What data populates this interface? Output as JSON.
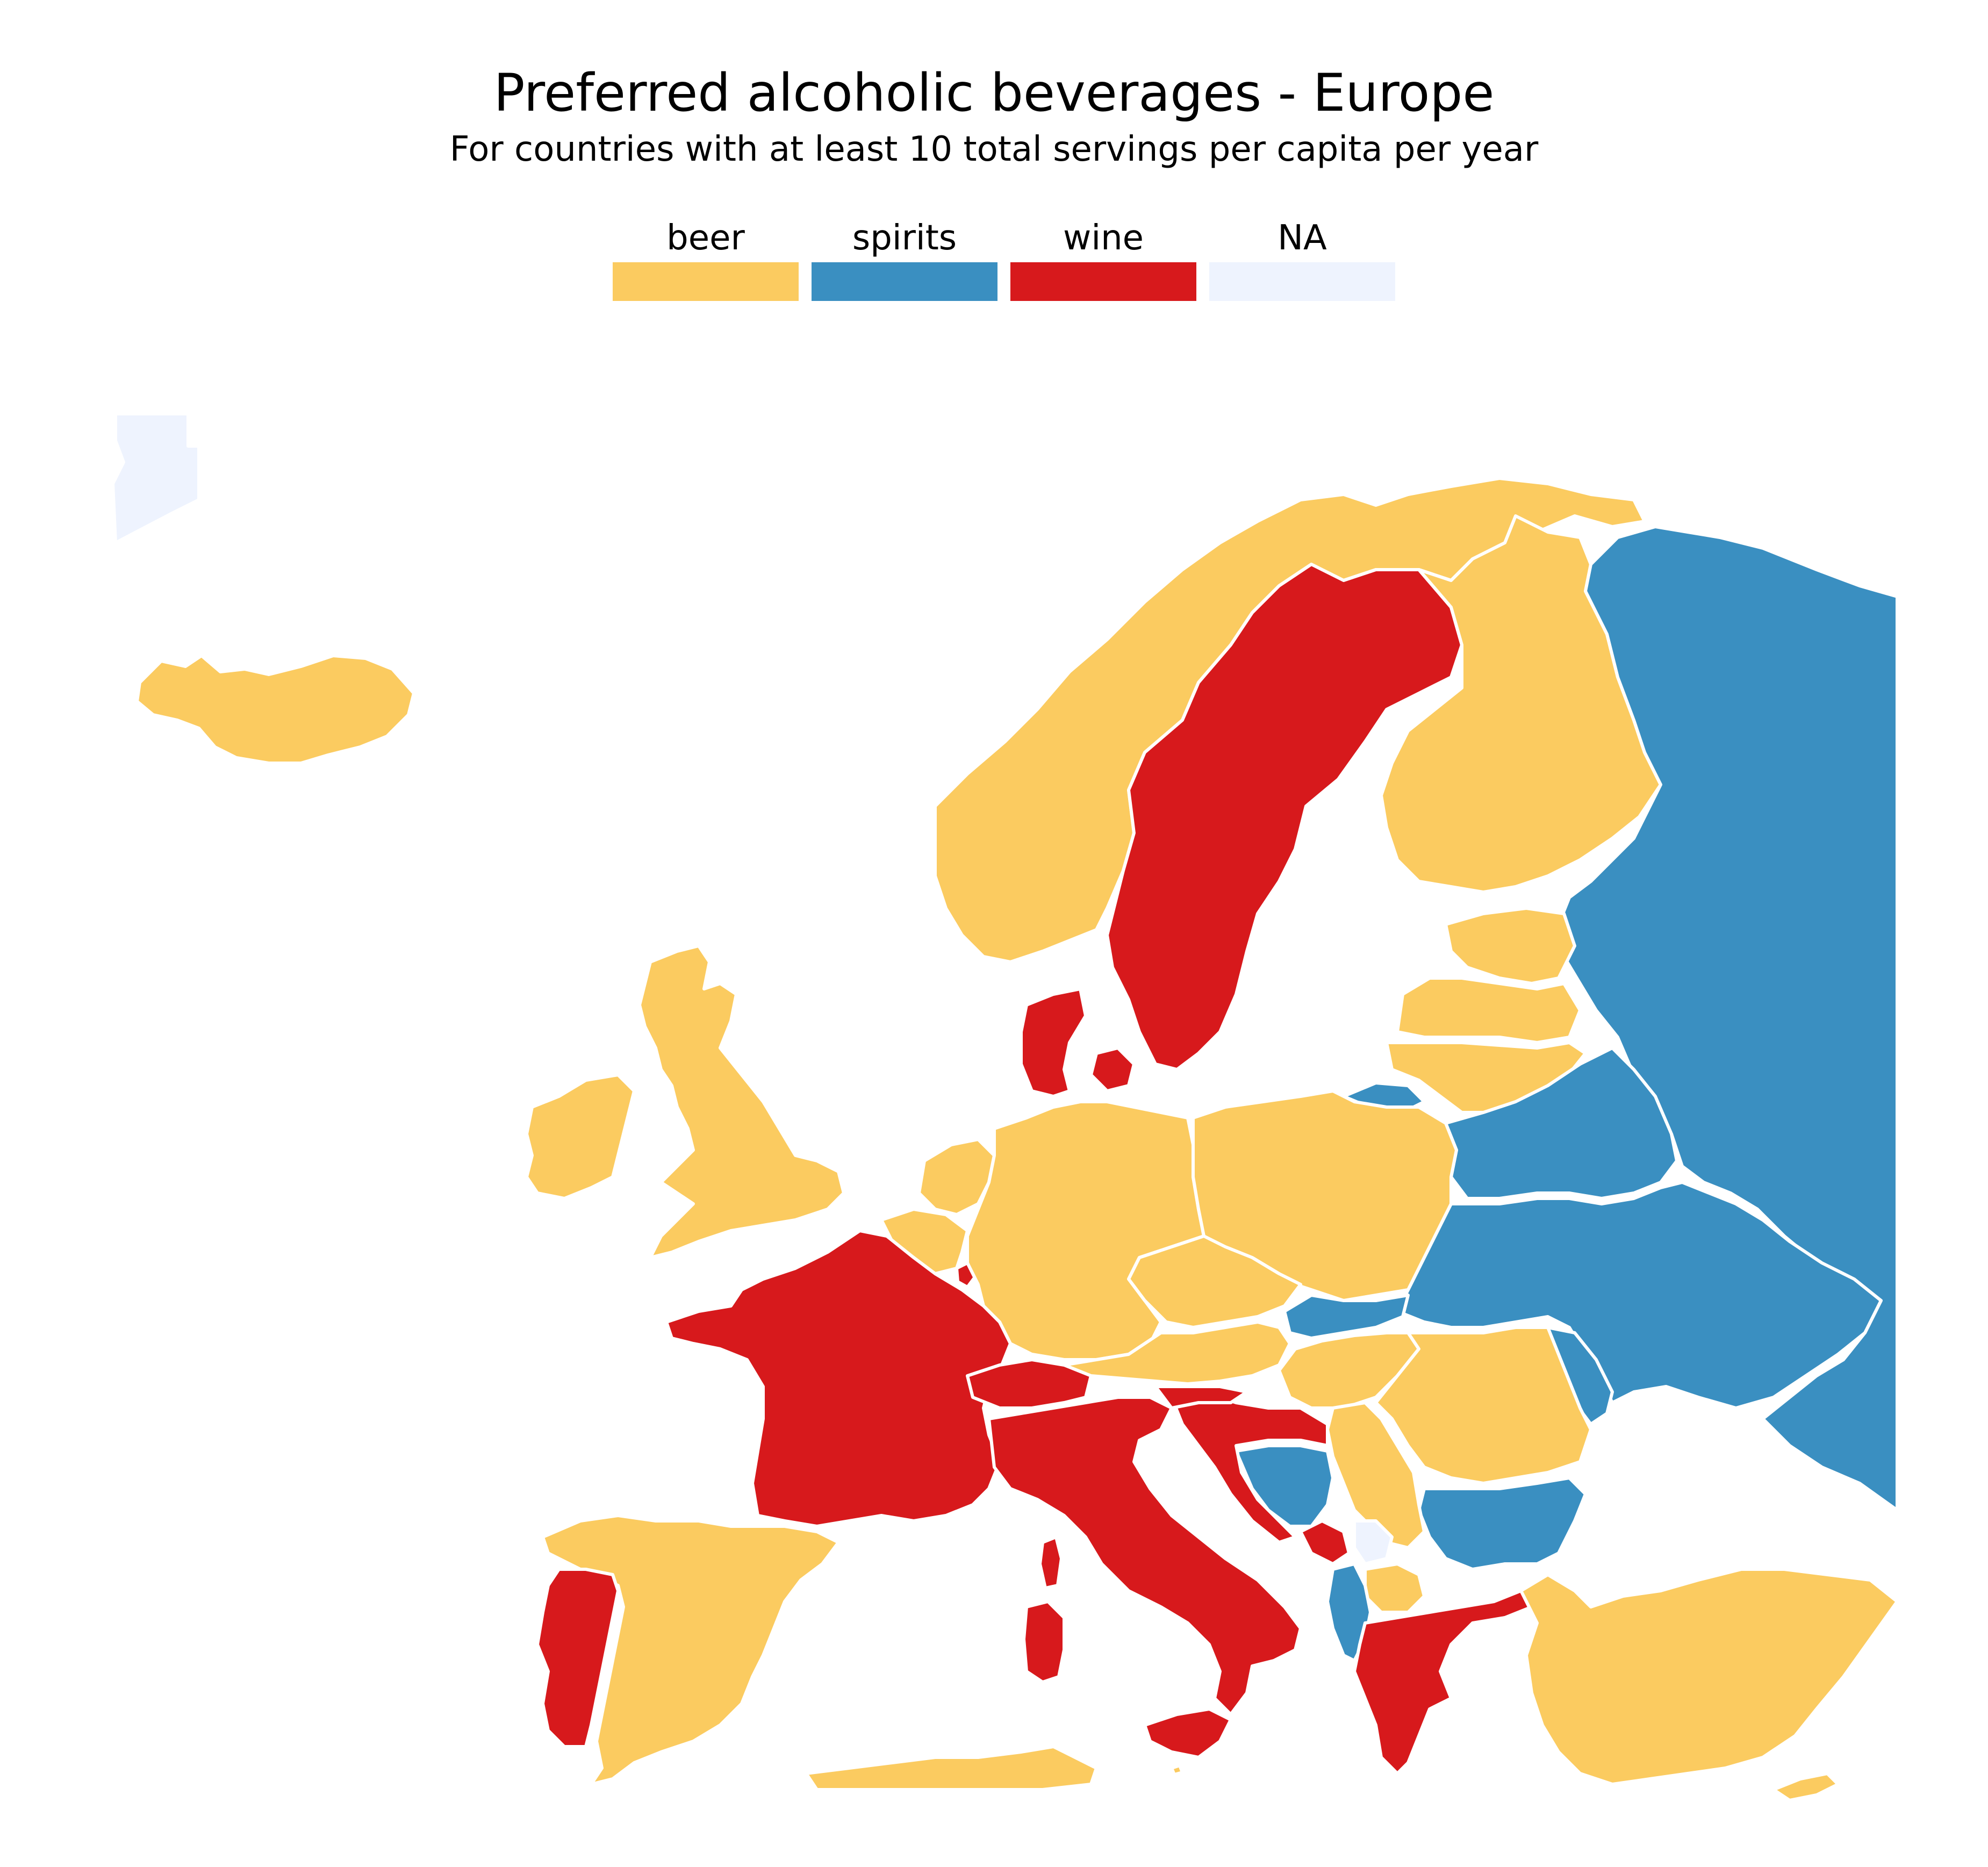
{
  "title": "Preferred alcoholic beverages - Europe",
  "subtitle": "For countries with at least 10 total servings per capita per year",
  "colors": {
    "beer": "#FBCB60",
    "spirits": "#3A8FC1",
    "wine": "#D7191C",
    "na": "#EEF3FE"
  },
  "legend": [
    {
      "label": "beer",
      "color": "#FBCB60"
    },
    {
      "label": "spirits",
      "color": "#3A8FC1"
    },
    {
      "label": "wine",
      "color": "#D7191C"
    },
    {
      "label": "NA",
      "color": "#EEF3FE"
    }
  ],
  "countries": [
    {
      "id": "iceland",
      "category": "beer"
    },
    {
      "id": "norway",
      "category": "beer"
    },
    {
      "id": "sweden",
      "category": "wine"
    },
    {
      "id": "finland",
      "category": "beer"
    },
    {
      "id": "russia",
      "category": "spirits"
    },
    {
      "id": "estonia",
      "category": "beer"
    },
    {
      "id": "latvia",
      "category": "beer"
    },
    {
      "id": "lithuania",
      "category": "beer"
    },
    {
      "id": "kaliningrad",
      "category": "spirits"
    },
    {
      "id": "belarus",
      "category": "spirits"
    },
    {
      "id": "ukraine",
      "category": "spirits"
    },
    {
      "id": "moldova",
      "category": "spirits"
    },
    {
      "id": "denmark",
      "category": "wine"
    },
    {
      "id": "united-kingdom",
      "category": "beer"
    },
    {
      "id": "ireland",
      "category": "beer"
    },
    {
      "id": "netherlands",
      "category": "beer"
    },
    {
      "id": "belgium",
      "category": "beer"
    },
    {
      "id": "luxembourg",
      "category": "wine"
    },
    {
      "id": "germany",
      "category": "beer"
    },
    {
      "id": "poland",
      "category": "beer"
    },
    {
      "id": "czechia",
      "category": "beer"
    },
    {
      "id": "slovakia",
      "category": "spirits"
    },
    {
      "id": "austria",
      "category": "beer"
    },
    {
      "id": "hungary",
      "category": "beer"
    },
    {
      "id": "romania",
      "category": "beer"
    },
    {
      "id": "bulgaria",
      "category": "spirits"
    },
    {
      "id": "serbia",
      "category": "beer"
    },
    {
      "id": "bosnia-and-herzegovina",
      "category": "spirits"
    },
    {
      "id": "croatia",
      "category": "wine"
    },
    {
      "id": "slovenia",
      "category": "wine"
    },
    {
      "id": "montenegro",
      "category": "wine"
    },
    {
      "id": "kosovo",
      "category": "na"
    },
    {
      "id": "north-macedonia",
      "category": "beer"
    },
    {
      "id": "albania",
      "category": "spirits"
    },
    {
      "id": "greece",
      "category": "wine"
    },
    {
      "id": "turkey",
      "category": "beer"
    },
    {
      "id": "cyprus",
      "category": "beer"
    },
    {
      "id": "france",
      "category": "wine"
    },
    {
      "id": "switzerland",
      "category": "wine"
    },
    {
      "id": "italy",
      "category": "wine"
    },
    {
      "id": "sicily",
      "category": "wine"
    },
    {
      "id": "sardinia",
      "category": "wine"
    },
    {
      "id": "corsica",
      "category": "wine"
    },
    {
      "id": "spain",
      "category": "beer"
    },
    {
      "id": "portugal",
      "category": "wine"
    },
    {
      "id": "malta",
      "category": "beer"
    },
    {
      "id": "north-africa",
      "category": "beer"
    },
    {
      "id": "greenland",
      "category": "na"
    }
  ]
}
